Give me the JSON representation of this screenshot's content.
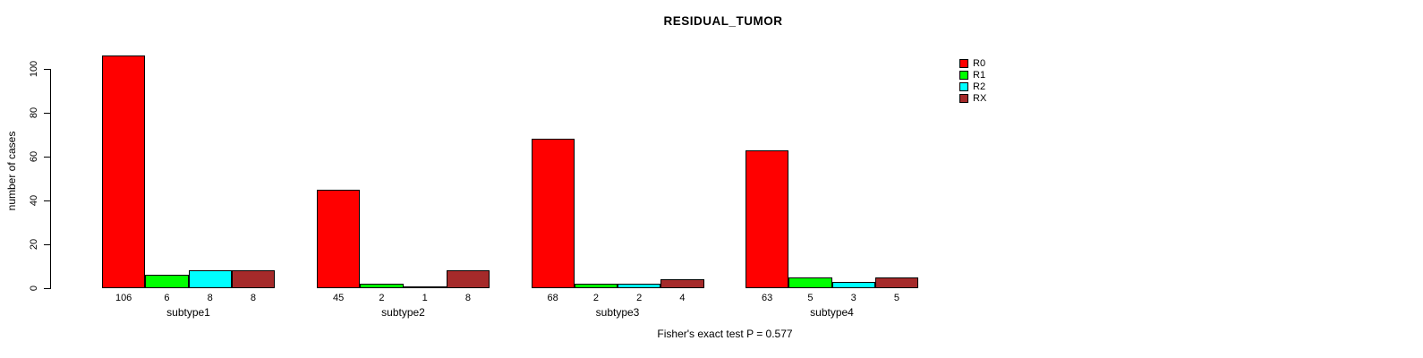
{
  "chart_data": {
    "type": "bar",
    "title": "RESIDUAL_TUMOR",
    "ylabel": "number of cases",
    "xlabel": "",
    "ylim": [
      0,
      100
    ],
    "yticks": [
      0,
      20,
      40,
      60,
      80,
      100
    ],
    "grid": false,
    "legend_position": "top-right",
    "categories": [
      "subtype1",
      "subtype2",
      "subtype3",
      "subtype4"
    ],
    "series": [
      {
        "name": "R0",
        "color": "#FF0000",
        "values": [
          106,
          45,
          68,
          63
        ]
      },
      {
        "name": "R1",
        "color": "#00FF00",
        "values": [
          6,
          2,
          2,
          5
        ]
      },
      {
        "name": "R2",
        "color": "#00FFFF",
        "values": [
          8,
          1,
          2,
          3
        ]
      },
      {
        "name": "RX",
        "color": "#A52A2A",
        "values": [
          8,
          8,
          4,
          5
        ]
      }
    ],
    "bar_value_labels": [
      [
        106,
        6,
        8,
        8
      ],
      [
        45,
        2,
        1,
        8
      ],
      [
        68,
        2,
        2,
        4
      ],
      [
        63,
        5,
        3,
        5
      ]
    ],
    "annotation": "Fisher's exact test P = 0.577"
  }
}
